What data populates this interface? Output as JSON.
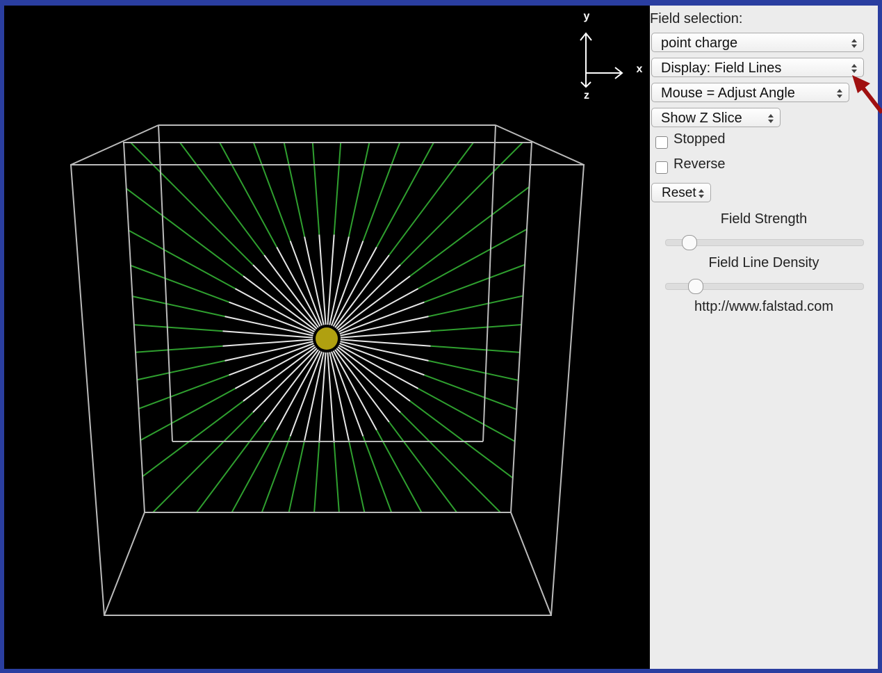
{
  "axes": {
    "y": "y",
    "x": "x",
    "z": "z"
  },
  "panel": {
    "field_selection_label": "Field selection:",
    "field_select": "point charge",
    "display_select": "Display: Field Lines",
    "mouse_select": "Mouse = Adjust Angle",
    "slice_select": "Show Z Slice",
    "stopped": "Stopped",
    "reverse": "Reverse",
    "reset": "Reset",
    "field_strength": "Field Strength",
    "field_line_density": "Field Line Density",
    "url": "http://www.falstad.com"
  }
}
